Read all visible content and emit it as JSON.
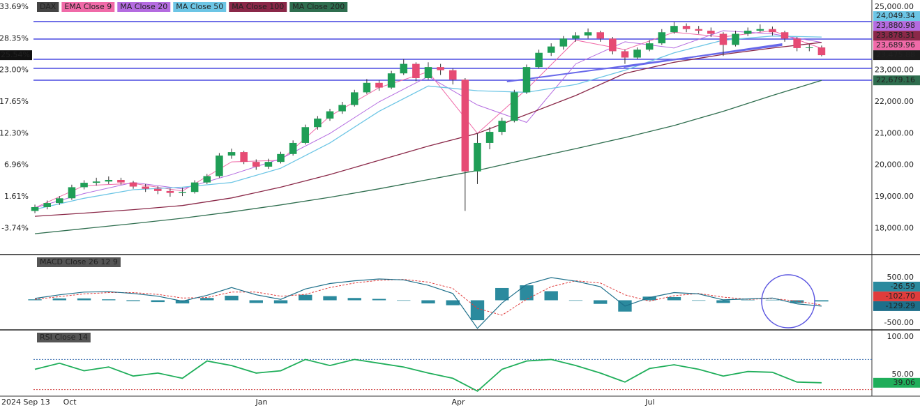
{
  "chart_data": [
    {
      "type": "candlestick",
      "xlim": [
        -2.84,
        68.09
      ],
      "xticks": [
        {
          "value": 0,
          "label": "2024 Sep 13"
        },
        {
          "value": 2.84,
          "label": "Oct"
        },
        {
          "value": 18.44,
          "label": "Jan"
        },
        {
          "value": 34.44,
          "label": "Apr"
        },
        {
          "value": 50.04,
          "label": "Jul"
        }
      ],
      "ylim": [
        17170,
        25220
      ],
      "yticks": [
        {
          "value": 25000,
          "label": "25,000.00"
        },
        {
          "value": 24000,
          "label": "24,000.00"
        },
        {
          "value": 23000,
          "label": "23,000.00"
        },
        {
          "value": 22000,
          "label": "22,000.00"
        },
        {
          "value": 21000,
          "label": "21,000.00"
        },
        {
          "value": 20000,
          "label": "20,000.00"
        },
        {
          "value": 19000,
          "label": "19,000.00"
        },
        {
          "value": 18000,
          "label": "18,000.00"
        }
      ],
      "y2lim": [
        -8.18,
        34.87
      ],
      "y2ticks": [
        {
          "value": 33.69,
          "label": "33.69%"
        },
        {
          "value": 28.35,
          "label": "28.35%"
        },
        {
          "value": 23.0,
          "label": "23.00%"
        },
        {
          "value": 17.65,
          "label": "17.65%"
        },
        {
          "value": 12.3,
          "label": "12.30%"
        },
        {
          "value": 6.96,
          "label": "6.96%"
        },
        {
          "value": 1.61,
          "label": "1.61%"
        },
        {
          "value": -3.74,
          "label": "-3.74%"
        }
      ],
      "last_change": {
        "value": 25.54,
        "label": "25.54%"
      },
      "candles": {
        "name": "DAX",
        "color": "#1c1c1c",
        "up_color": "#1f9e56",
        "down_color": "#e64b74",
        "open": [
          18550,
          18670,
          18800,
          18950,
          19300,
          19440,
          19480,
          19530,
          19450,
          19320,
          19250,
          19180,
          19120,
          19150,
          19450,
          19650,
          20300,
          20410,
          20100,
          19950,
          20100,
          20350,
          20700,
          21200,
          21470,
          21700,
          21900,
          22300,
          22600,
          22450,
          22900,
          23200,
          22750,
          23100,
          23000,
          22700,
          19800,
          20700,
          21050,
          21400,
          22300,
          23100,
          23550,
          23750,
          24000,
          24100,
          24200,
          24000,
          23600,
          23400,
          23650,
          23850,
          24200,
          24400,
          24300,
          24250,
          24150,
          23800,
          24150,
          24250,
          24300,
          24200,
          24000,
          23700,
          23720
        ],
        "high": [
          18750,
          18880,
          19020,
          19380,
          19520,
          19600,
          19640,
          19600,
          19500,
          19400,
          19330,
          19260,
          19280,
          19520,
          19720,
          20380,
          20520,
          20450,
          20180,
          20200,
          20420,
          20780,
          21280,
          21550,
          21780,
          22000,
          22380,
          22720,
          22680,
          22980,
          23350,
          23250,
          23250,
          23200,
          23050,
          22750,
          21000,
          21200,
          21500,
          22380,
          23180,
          23650,
          23850,
          24080,
          24200,
          24320,
          24250,
          24050,
          23650,
          23720,
          23950,
          24300,
          24520,
          24480,
          24400,
          24350,
          24200,
          24250,
          24350,
          24450,
          24380,
          24250,
          24050,
          23820,
          23780
        ],
        "low": [
          18480,
          18600,
          18740,
          18900,
          19230,
          19350,
          19400,
          19380,
          19250,
          19150,
          19080,
          19000,
          19020,
          19100,
          19400,
          19600,
          20200,
          20030,
          19850,
          19880,
          20050,
          20300,
          20650,
          21120,
          21400,
          21620,
          21850,
          22250,
          22350,
          22400,
          22850,
          22650,
          22700,
          22850,
          22550,
          18550,
          19400,
          20500,
          20950,
          21350,
          22250,
          23050,
          23450,
          23650,
          23900,
          24000,
          23900,
          23500,
          23200,
          23350,
          23600,
          23800,
          24150,
          24200,
          24150,
          24050,
          23450,
          23750,
          24080,
          24200,
          24100,
          23900,
          23600,
          23600,
          23440
        ],
        "close": [
          18670,
          18800,
          18950,
          19300,
          19440,
          19480,
          19530,
          19450,
          19320,
          19250,
          19180,
          19120,
          19150,
          19450,
          19650,
          20300,
          20410,
          20100,
          19950,
          20100,
          20350,
          20700,
          21200,
          21470,
          21700,
          21900,
          22300,
          22600,
          22450,
          22900,
          23200,
          22750,
          23100,
          23000,
          22700,
          19800,
          20700,
          21050,
          21400,
          22300,
          23100,
          23550,
          23750,
          24000,
          24100,
          24200,
          24000,
          23600,
          23400,
          23650,
          23850,
          24200,
          24400,
          24300,
          24250,
          24150,
          23800,
          24150,
          24250,
          24300,
          24200,
          24000,
          23700,
          23720,
          23475.88
        ],
        "value_labels": [
          null,
          null,
          null,
          null,
          null,
          null,
          null,
          null,
          null,
          null,
          null,
          null,
          null,
          null,
          null,
          null,
          null,
          null,
          null,
          null,
          null,
          null,
          null,
          null,
          null,
          null,
          null,
          null,
          null,
          null,
          null,
          null,
          null,
          null,
          null,
          null,
          null,
          null,
          null,
          null,
          null,
          null,
          null,
          null,
          null,
          null,
          null,
          null,
          null,
          null,
          null,
          null,
          null,
          null,
          null,
          null,
          null,
          null,
          null,
          null,
          null,
          null,
          null,
          null,
          "23,475.88"
        ]
      },
      "series": [
        {
          "name": "EMA Close 9",
          "color": "#f06aa8",
          "x": [
            0,
            4,
            8,
            12,
            16,
            20,
            24,
            28,
            32,
            36,
            40,
            44,
            48,
            52,
            56,
            60,
            64
          ],
          "values": [
            18650,
            19350,
            19420,
            19180,
            20100,
            20150,
            21550,
            22450,
            22950,
            21000,
            22400,
            23950,
            23650,
            24200,
            24050,
            24250,
            23689.96
          ],
          "value_labels": [
            null,
            null,
            null,
            null,
            null,
            null,
            null,
            null,
            null,
            null,
            null,
            null,
            null,
            null,
            null,
            null,
            "23,689.96"
          ]
        },
        {
          "name": "MA Close 20",
          "color": "#b46be0",
          "x": [
            0,
            4,
            8,
            12,
            16,
            20,
            24,
            28,
            32,
            36,
            40,
            44,
            48,
            52,
            56,
            60,
            64
          ],
          "values": [
            18650,
            19100,
            19450,
            19250,
            19700,
            20200,
            21000,
            22000,
            22800,
            21900,
            21350,
            23200,
            23900,
            23700,
            24250,
            24150,
            23880.98
          ],
          "value_labels": [
            null,
            null,
            null,
            null,
            null,
            null,
            null,
            null,
            null,
            null,
            null,
            null,
            null,
            null,
            null,
            null,
            "23,880.98"
          ]
        },
        {
          "name": "MA Close 50",
          "color": "#6cc5e5",
          "x": [
            0,
            4,
            8,
            12,
            16,
            20,
            24,
            28,
            32,
            36,
            40,
            44,
            48,
            52,
            56,
            60,
            64
          ],
          "values": [
            18600,
            18950,
            19220,
            19300,
            19450,
            19900,
            20700,
            21700,
            22500,
            22350,
            22300,
            22550,
            23000,
            23550,
            23950,
            24080,
            24049.34
          ],
          "value_labels": [
            null,
            null,
            null,
            null,
            null,
            null,
            null,
            null,
            null,
            null,
            null,
            null,
            null,
            null,
            null,
            null,
            "24,049.34"
          ]
        },
        {
          "name": "MA Close 100",
          "color": "#8a2848",
          "x": [
            0,
            4,
            8,
            12,
            16,
            20,
            24,
            28,
            32,
            36,
            40,
            44,
            48,
            52,
            56,
            60,
            64
          ],
          "values": [
            18380,
            18480,
            18590,
            18720,
            18960,
            19300,
            19700,
            20150,
            20600,
            21000,
            21600,
            22200,
            22900,
            23250,
            23500,
            23700,
            23878.31
          ],
          "value_labels": [
            null,
            null,
            null,
            null,
            null,
            null,
            null,
            null,
            null,
            null,
            null,
            null,
            null,
            null,
            null,
            null,
            "23,878.31"
          ]
        },
        {
          "name": "MA Close 200",
          "color": "#2f6e4f",
          "x": [
            0,
            4,
            8,
            12,
            16,
            20,
            24,
            28,
            32,
            36,
            40,
            44,
            48,
            52,
            56,
            60,
            64
          ],
          "values": [
            17830,
            17990,
            18150,
            18320,
            18520,
            18740,
            18980,
            19250,
            19540,
            19830,
            20180,
            20520,
            20870,
            21250,
            21700,
            22200,
            22679.16
          ],
          "value_labels": [
            null,
            null,
            null,
            null,
            null,
            null,
            null,
            null,
            null,
            null,
            null,
            null,
            null,
            null,
            null,
            null,
            "22,679.16"
          ]
        }
      ],
      "levels": {
        "color": "#4a4ae0",
        "values": [
          24540,
          23985,
          23345,
          23060,
          22685
        ]
      },
      "trendlines": {
        "color": "#6868ea",
        "lines": [
          {
            "x": [
              38.4,
              60.8
            ],
            "values": [
              22640,
              23790
            ]
          },
          {
            "x": [
              47.9,
              60.8
            ],
            "values": [
              23100,
              23830
            ]
          }
        ]
      }
    },
    {
      "type": "macd",
      "title": "MACD Close 26 12 9",
      "ylim": [
        -654,
        1008
      ],
      "yticks": [
        {
          "value": 500,
          "label": "500.00"
        },
        {
          "value": -500,
          "label": "-500.00"
        }
      ],
      "x": [
        0,
        2,
        4,
        6,
        8,
        10,
        12,
        14,
        16,
        18,
        20,
        22,
        24,
        26,
        28,
        30,
        32,
        34,
        36,
        38,
        40,
        42,
        44,
        46,
        48,
        50,
        52,
        54,
        56,
        58,
        60,
        62,
        64
      ],
      "macd": {
        "color": "#1d6f8a",
        "values": [
          40,
          120,
          180,
          190,
          150,
          90,
          -20,
          110,
          280,
          120,
          20,
          250,
          370,
          430,
          470,
          450,
          330,
          150,
          -620,
          -60,
          350,
          500,
          420,
          300,
          -130,
          60,
          170,
          140,
          10,
          30,
          50,
          -80,
          -129.29
        ],
        "value_labels": [
          null,
          null,
          null,
          null,
          null,
          null,
          null,
          null,
          null,
          null,
          null,
          null,
          null,
          null,
          null,
          null,
          null,
          null,
          null,
          null,
          null,
          null,
          null,
          null,
          null,
          null,
          null,
          null,
          null,
          null,
          null,
          null,
          "-129.29"
        ]
      },
      "signal": {
        "color": "#e03c3c",
        "values": [
          20,
          80,
          140,
          170,
          170,
          130,
          50,
          60,
          180,
          180,
          90,
          130,
          280,
          380,
          440,
          460,
          400,
          260,
          -180,
          -330,
          20,
          300,
          430,
          380,
          120,
          -20,
          100,
          150,
          70,
          20,
          40,
          -20,
          -102.7
        ],
        "value_labels": [
          null,
          null,
          null,
          null,
          null,
          null,
          null,
          null,
          null,
          null,
          null,
          null,
          null,
          null,
          null,
          null,
          null,
          null,
          null,
          null,
          null,
          null,
          null,
          null,
          null,
          null,
          null,
          null,
          null,
          null,
          null,
          null,
          "-102.70"
        ]
      },
      "histogram": {
        "color": "#2b8a9e",
        "values": [
          20,
          40,
          40,
          20,
          -20,
          -40,
          -70,
          50,
          100,
          -60,
          -70,
          120,
          90,
          50,
          30,
          -10,
          -70,
          -110,
          -440,
          270,
          330,
          200,
          -10,
          -80,
          -250,
          80,
          70,
          -10,
          -60,
          10,
          10,
          -60,
          -26.59
        ],
        "value_labels": [
          null,
          null,
          null,
          null,
          null,
          null,
          null,
          null,
          null,
          null,
          null,
          null,
          null,
          null,
          null,
          null,
          null,
          null,
          null,
          null,
          null,
          null,
          null,
          null,
          null,
          null,
          null,
          null,
          null,
          null,
          null,
          null,
          "-26.59"
        ]
      }
    },
    {
      "type": "line",
      "title": "RSI Close 14",
      "color": "#1fae5a",
      "ylim": [
        21.3,
        109.3
      ],
      "yticks": [
        {
          "value": 100,
          "label": "100.00"
        },
        {
          "value": 50,
          "label": "50.00"
        }
      ],
      "x": [
        0,
        2,
        4,
        6,
        8,
        10,
        12,
        14,
        16,
        18,
        20,
        22,
        24,
        26,
        28,
        30,
        32,
        34,
        36,
        38,
        40,
        42,
        44,
        46,
        48,
        50,
        52,
        54,
        56,
        58,
        60,
        62,
        64
      ],
      "values": [
        57,
        65,
        55,
        60,
        48,
        52,
        45,
        68,
        62,
        52,
        55,
        70,
        62,
        70,
        65,
        60,
        52,
        45,
        28,
        57,
        68,
        70,
        62,
        52,
        40,
        58,
        63,
        57,
        48,
        54,
        53,
        40,
        39.06
      ],
      "value_labels": [
        null,
        null,
        null,
        null,
        null,
        null,
        null,
        null,
        null,
        null,
        null,
        null,
        null,
        null,
        null,
        null,
        null,
        null,
        null,
        null,
        null,
        null,
        null,
        null,
        null,
        null,
        null,
        null,
        null,
        null,
        null,
        null,
        "39.06"
      ],
      "levels": {
        "values": [
          70,
          30
        ],
        "colors": [
          "#3a6fb0",
          "#d04040"
        ]
      }
    }
  ]
}
